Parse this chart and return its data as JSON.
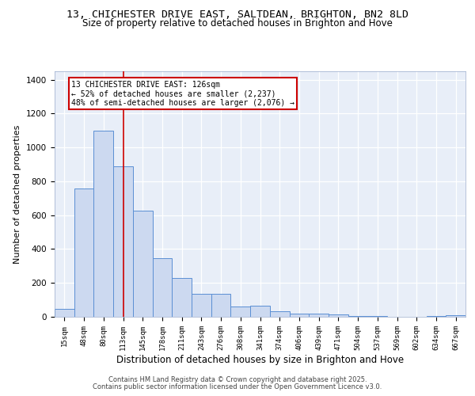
{
  "title_line1": "13, CHICHESTER DRIVE EAST, SALTDEAN, BRIGHTON, BN2 8LD",
  "title_line2": "Size of property relative to detached houses in Brighton and Hove",
  "xlabel": "Distribution of detached houses by size in Brighton and Hove",
  "ylabel": "Number of detached properties",
  "bar_labels": [
    "15sqm",
    "48sqm",
    "80sqm",
    "113sqm",
    "145sqm",
    "178sqm",
    "211sqm",
    "243sqm",
    "276sqm",
    "308sqm",
    "341sqm",
    "374sqm",
    "406sqm",
    "439sqm",
    "471sqm",
    "504sqm",
    "537sqm",
    "569sqm",
    "602sqm",
    "634sqm",
    "667sqm"
  ],
  "bar_values": [
    47,
    760,
    1100,
    890,
    625,
    348,
    230,
    135,
    135,
    63,
    67,
    33,
    18,
    18,
    14,
    5,
    5,
    0,
    0,
    3,
    9
  ],
  "bar_color": "#ccd9f0",
  "bar_edge_color": "#5b8fd4",
  "vline_x": 3.0,
  "vline_color": "#cc0000",
  "annotation_text": "13 CHICHESTER DRIVE EAST: 126sqm\n← 52% of detached houses are smaller (2,237)\n48% of semi-detached houses are larger (2,076) →",
  "annotation_box_color": "#cc0000",
  "ylim": [
    0,
    1450
  ],
  "yticks": [
    0,
    200,
    400,
    600,
    800,
    1000,
    1200,
    1400
  ],
  "bg_color": "#e8eef8",
  "grid_color": "#c8d4e8",
  "footer_line1": "Contains HM Land Registry data © Crown copyright and database right 2025.",
  "footer_line2": "Contains public sector information licensed under the Open Government Licence v3.0."
}
